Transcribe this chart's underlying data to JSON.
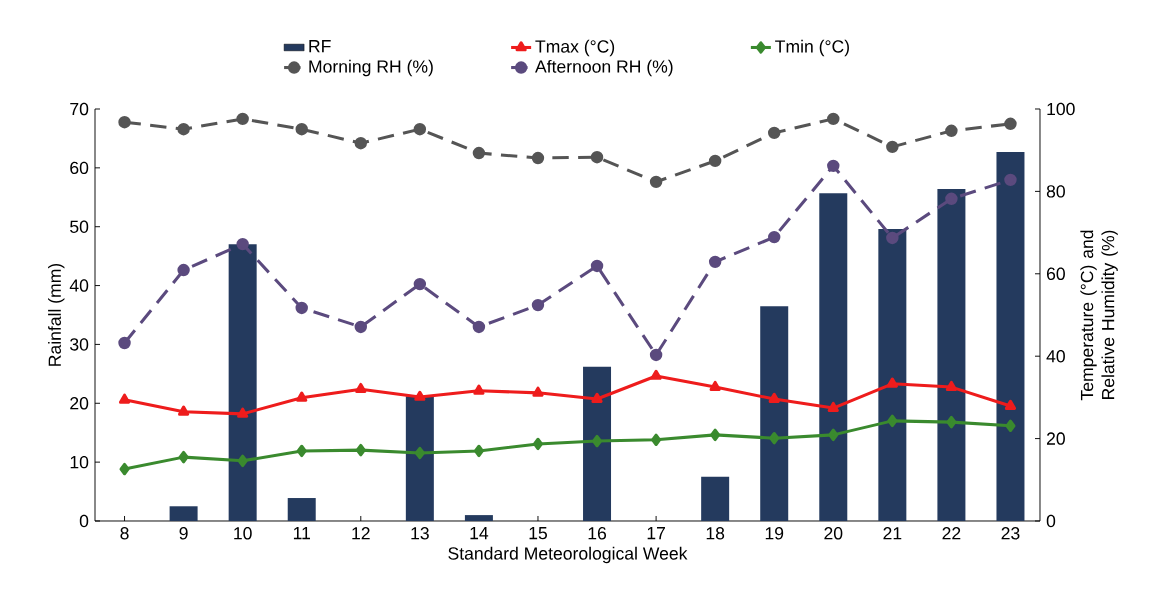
{
  "chart_data": {
    "type": "line",
    "xlabel": "Standard Meteorological Week",
    "ylabel": "Rainfall (mm)",
    "y2label": "Temperature (°C) and Relative Humidity (%)",
    "categories": [
      "8",
      "9",
      "10",
      "11",
      "12",
      "13",
      "14",
      "15",
      "16",
      "17",
      "18",
      "19",
      "20",
      "21",
      "22",
      "23"
    ],
    "ylim": [
      0,
      70
    ],
    "yticks": [
      0,
      10,
      20,
      30,
      40,
      50,
      60,
      70
    ],
    "y2lim": [
      0,
      100
    ],
    "y2ticks": [
      0,
      20,
      40,
      60,
      80,
      100
    ],
    "legend": "top",
    "grid": false,
    "series": [
      {
        "name": "RF",
        "type": "bar",
        "axis": "y",
        "color": "#243a5e",
        "values": [
          0,
          2.5,
          47,
          3.9,
          0,
          21.2,
          1,
          0,
          26.2,
          0,
          7.5,
          36.5,
          55.7,
          49.6,
          56.4,
          62.7
        ]
      },
      {
        "name": "Tmax (°C)",
        "axis": "y2",
        "color": "#ee1c1c",
        "marker": "triangle",
        "line_style": "solid",
        "values": [
          29.4,
          26.5,
          26,
          29.9,
          32,
          30.1,
          31.6,
          31.1,
          29.6,
          35.2,
          32.5,
          29.6,
          27.4,
          33.3,
          32.5,
          27.9
        ]
      },
      {
        "name": "Tmin (°C)",
        "axis": "y2",
        "color": "#3a8a2e",
        "marker": "diamond",
        "line_style": "solid",
        "values": [
          12.6,
          15.5,
          14.6,
          17,
          17.2,
          16.5,
          17,
          18.7,
          19.4,
          19.7,
          20.9,
          20.1,
          20.9,
          24.3,
          24,
          23.1
        ]
      },
      {
        "name": "Morning RH (%)",
        "axis": "y2",
        "color": "#555555",
        "marker": "circle",
        "line_style": "dashed",
        "values": [
          96.8,
          95.1,
          97.6,
          95.1,
          91.7,
          95.1,
          89.3,
          88.1,
          88.3,
          82.3,
          87.4,
          94.2,
          97.6,
          90.8,
          94.7,
          96.4
        ]
      },
      {
        "name": "Afternoon RH (%)",
        "axis": "y2",
        "color": "#5b4a7e",
        "marker": "circle",
        "line_style": "dashed",
        "values": [
          43.2,
          60.9,
          67.2,
          51.7,
          47.1,
          57.5,
          47.1,
          52.4,
          61.9,
          40.3,
          62.9,
          68.9,
          86.2,
          68.7,
          78.2,
          82.8
        ]
      }
    ]
  }
}
